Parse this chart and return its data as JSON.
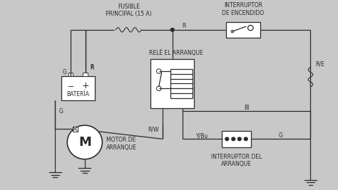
{
  "bg_color": "#c8c8c8",
  "line_color": "#2a2a2a",
  "labels": {
    "fusible": "FUSIBLE\nPRINCIPAL (15 A)",
    "interruptor_enc": "INTERRUPTOR\nDE ENCENDIDO",
    "rele": "RELÉ EL ARRANQUE",
    "bateria": "BATERÍA",
    "motor": "MOTOR DE\nARRANQUE",
    "interruptor_arr": "INTERRUPTOR DEL\nARRANQUE",
    "R_left": "R",
    "G_left": "G",
    "R_right_bat": "R",
    "RE_right": "R/E",
    "Bl_mid": "Bl",
    "YBu": "Y/Bu",
    "G_right": "G",
    "RW": "R/W",
    "G_bottom": "G",
    "R_fuse": "R"
  },
  "fs": 5.5,
  "fs_M": 13,
  "lw": 0.9
}
